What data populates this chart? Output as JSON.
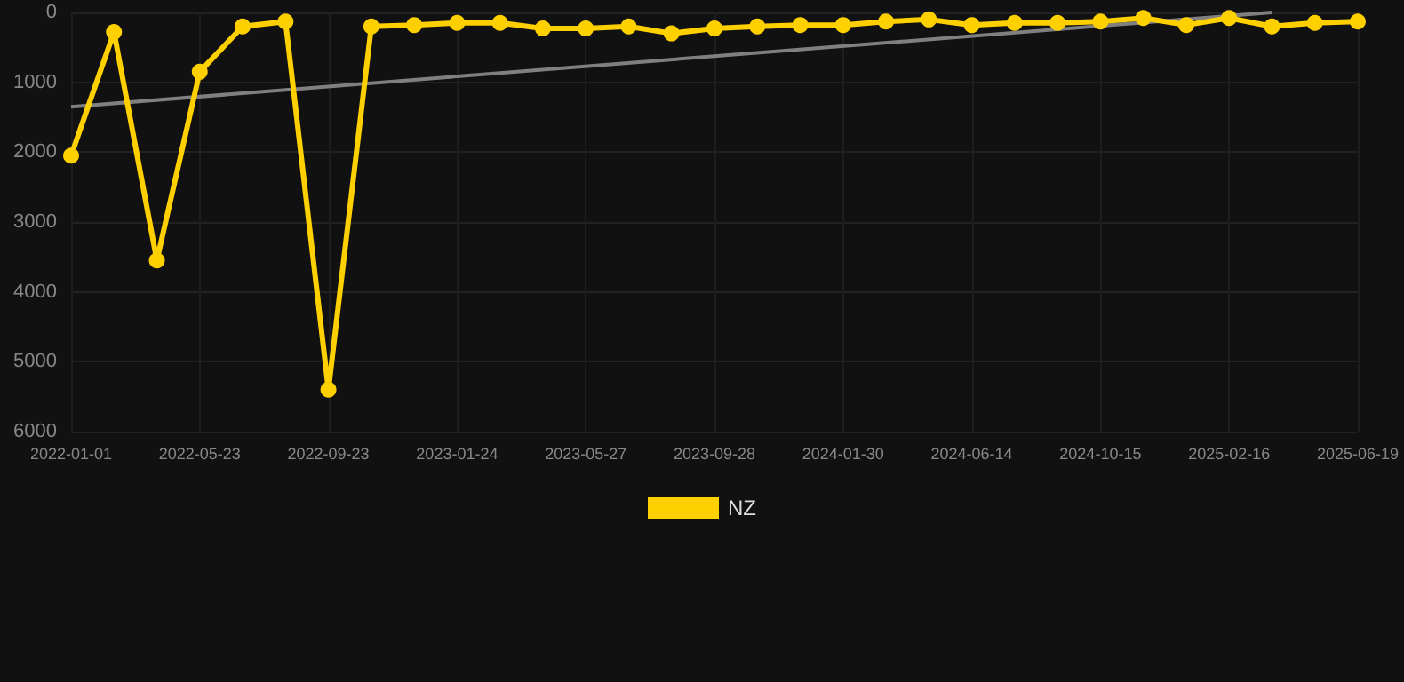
{
  "chart_data": {
    "type": "line",
    "categories": [
      "2022-01-01",
      null,
      null,
      "2022-05-23",
      null,
      null,
      "2022-09-23",
      null,
      null,
      "2023-01-24",
      null,
      null,
      "2023-05-27",
      null,
      null,
      "2023-09-28",
      null,
      null,
      "2024-01-30",
      null,
      null,
      "2024-06-14",
      null,
      null,
      "2024-10-15",
      null,
      null,
      "2025-02-16",
      null,
      null,
      "2025-06-19"
    ],
    "series": [
      {
        "name": "NZ",
        "color": "#ffd000",
        "marker": "circle",
        "values": [
          2050,
          280,
          3550,
          850,
          200,
          130,
          5400,
          200,
          180,
          150,
          150,
          230,
          230,
          200,
          300,
          230,
          200,
          180,
          180,
          130,
          100,
          180,
          150,
          150,
          130,
          80,
          180,
          80,
          200,
          150,
          130
        ]
      },
      {
        "color": "#808080",
        "marker": "none",
        "values": [
          1350,
          null,
          null,
          null,
          null,
          null,
          null,
          null,
          null,
          null,
          null,
          null,
          null,
          null,
          null,
          null,
          null,
          null,
          null,
          null,
          null,
          null,
          null,
          null,
          null,
          null,
          null,
          null,
          0,
          null,
          null
        ]
      }
    ],
    "ylim": [
      6000,
      0
    ],
    "yticks": [
      0,
      1000,
      2000,
      3000,
      4000,
      5000,
      6000
    ],
    "grid": true,
    "legend": "bottom"
  }
}
